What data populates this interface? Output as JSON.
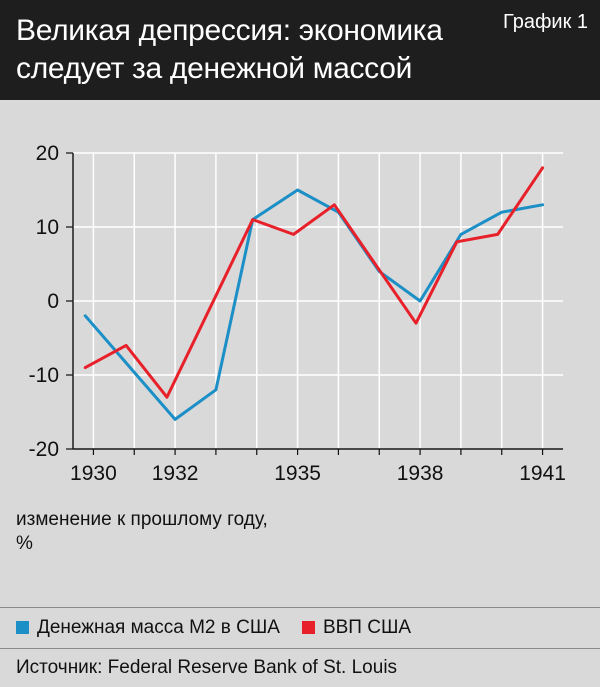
{
  "header": {
    "title_line1": "Великая депрессия: экономика",
    "title_line2": "следует за денежной массой",
    "graph_tag": "График 1"
  },
  "axis_note": {
    "line1": "изменение к прошлому году,",
    "line2": "%"
  },
  "source": "Источник: Federal Reserve Bank of St. Louis",
  "colors": {
    "background": "#d9d9d9",
    "header": "#1e1e1e",
    "m2": "#1b8fc6",
    "gdp": "#e8202a",
    "grid": "#ffffff",
    "axis": "#111111"
  },
  "chart_data": {
    "type": "line",
    "title": "Великая депрессия: экономика следует за денежной массой",
    "xlabel": "",
    "ylabel": "изменение к прошлому году, %",
    "xlim": [
      1929.5,
      1941.5
    ],
    "ylim": [
      -20,
      20
    ],
    "x_tick_labels": [
      {
        "x": 1930,
        "label": "1930"
      },
      {
        "x": 1932,
        "label": "1932"
      },
      {
        "x": 1935,
        "label": "1935"
      },
      {
        "x": 1938,
        "label": "1938"
      },
      {
        "x": 1941,
        "label": "1941"
      }
    ],
    "y_ticks": [
      -20,
      -10,
      0,
      10,
      20
    ],
    "y_tick_labels": [
      "-20",
      "-10",
      "0",
      "10",
      "20"
    ],
    "x_gridlines": [
      1930,
      1931,
      1932,
      1933,
      1934,
      1935,
      1936,
      1937,
      1938,
      1939,
      1940,
      1941
    ],
    "grid": true,
    "legend_position": "bottom",
    "series": [
      {
        "name": "Денежная масса М2 в США",
        "color": "#1b8fc6",
        "x": [
          1929.8,
          1932,
          1933,
          1933.9,
          1935,
          1936,
          1937,
          1938,
          1939,
          1940,
          1941
        ],
        "y": [
          -2,
          -16,
          -12,
          11,
          15,
          12,
          4,
          0,
          9,
          12,
          13
        ]
      },
      {
        "name": "ВВП США",
        "color": "#e8202a",
        "x": [
          1929.8,
          1930.8,
          1931.8,
          1933.9,
          1934.9,
          1935.9,
          1936.9,
          1937.9,
          1938.9,
          1939.9,
          1941
        ],
        "y": [
          -9,
          -6,
          -13,
          11,
          9,
          13,
          5,
          -3,
          8,
          9,
          18
        ]
      }
    ]
  }
}
